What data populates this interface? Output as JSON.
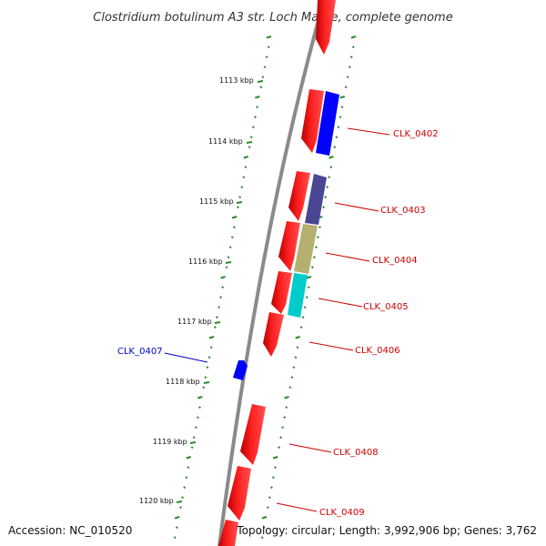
{
  "title": "Clostridium botulinum A3 str. Loch Maree, complete genome",
  "footer": {
    "accession": "Accession: NC_010520",
    "summary": "Topology: circular; Length: 3,992,906 bp; Genes: 3,762"
  },
  "scale_labels": [
    "1113 kbp",
    "1114 kbp",
    "1115 kbp",
    "1116 kbp",
    "1117 kbp",
    "1118 kbp",
    "1119 kbp",
    "1120 kbp"
  ],
  "colors": {
    "backbone": "#8a8a8a",
    "gc_ticks": "#2a8a2a",
    "forward_gene": "#ff0000",
    "label_forward": "#cc0000",
    "label_reverse": "#0000cc"
  },
  "genes": [
    {
      "name": "CLK_0402",
      "color": "#0000ff",
      "strand": "outer"
    },
    {
      "name": "CLK_0403",
      "color": "#4b4694",
      "strand": "outer"
    },
    {
      "name": "CLK_0404",
      "color": "#b5b070",
      "strand": "outer"
    },
    {
      "name": "CLK_0405",
      "color": "#00cccc",
      "strand": "outer"
    },
    {
      "name": "CLK_0406",
      "color": "#ff0000",
      "strand": "inner"
    },
    {
      "name": "CLK_0407",
      "color": "#0000ff",
      "strand": "left"
    },
    {
      "name": "CLK_0408",
      "color": "#ff0000",
      "strand": "inner"
    },
    {
      "name": "CLK_0409",
      "color": "#ff0000",
      "strand": "inner"
    }
  ]
}
